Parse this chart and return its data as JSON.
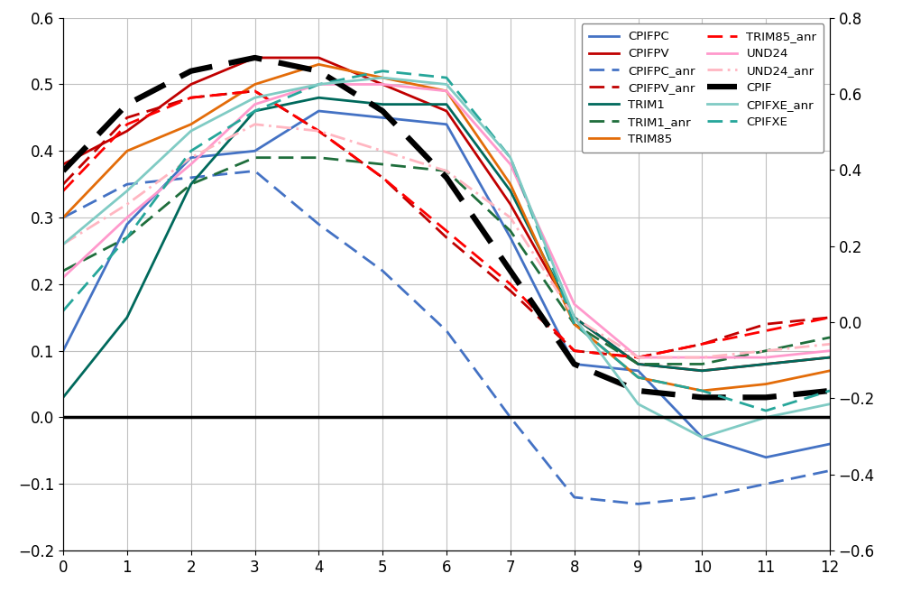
{
  "x": [
    0,
    1,
    2,
    3,
    4,
    5,
    6,
    7,
    8,
    9,
    10,
    11,
    12
  ],
  "series": {
    "CPIFPC": {
      "color": "#4472C4",
      "linestyle": "solid",
      "linewidth": 2.0,
      "values": [
        0.1,
        0.29,
        0.39,
        0.4,
        0.46,
        0.45,
        0.44,
        0.27,
        0.08,
        0.07,
        -0.03,
        -0.06,
        -0.04
      ]
    },
    "CPIFPC_anr": {
      "color": "#4472C4",
      "linestyle": "dashed",
      "linewidth": 2.0,
      "values": [
        0.3,
        0.35,
        0.36,
        0.37,
        0.29,
        0.22,
        0.13,
        0.0,
        -0.12,
        -0.13,
        -0.12,
        -0.1,
        -0.08
      ]
    },
    "CPIFPV": {
      "color": "#C00000",
      "linestyle": "solid",
      "linewidth": 2.0,
      "values": [
        0.38,
        0.43,
        0.5,
        0.54,
        0.54,
        0.5,
        0.46,
        0.32,
        0.15,
        0.08,
        0.07,
        0.08,
        0.09
      ]
    },
    "CPIFPV_anr": {
      "color": "#C00000",
      "linestyle": "dashed",
      "linewidth": 2.0,
      "values": [
        0.35,
        0.45,
        0.48,
        0.49,
        0.43,
        0.36,
        0.27,
        0.19,
        0.1,
        0.09,
        0.11,
        0.14,
        0.15
      ]
    },
    "TRIM1": {
      "color": "#00695C",
      "linestyle": "solid",
      "linewidth": 2.0,
      "values": [
        0.03,
        0.15,
        0.35,
        0.46,
        0.48,
        0.47,
        0.47,
        0.34,
        0.15,
        0.08,
        0.07,
        0.08,
        0.09
      ]
    },
    "TRIM1_anr": {
      "color": "#1F6E3C",
      "linestyle": "dashed",
      "linewidth": 2.0,
      "values": [
        0.22,
        0.27,
        0.35,
        0.39,
        0.39,
        0.38,
        0.37,
        0.28,
        0.14,
        0.08,
        0.08,
        0.1,
        0.12
      ]
    },
    "TRIM85": {
      "color": "#E36C09",
      "linestyle": "solid",
      "linewidth": 2.0,
      "values": [
        0.3,
        0.4,
        0.44,
        0.5,
        0.53,
        0.51,
        0.49,
        0.35,
        0.14,
        0.06,
        0.04,
        0.05,
        0.07
      ]
    },
    "TRIM85_anr": {
      "color": "#FF0000",
      "linestyle": "dashed",
      "linewidth": 2.0,
      "values": [
        0.34,
        0.44,
        0.48,
        0.49,
        0.43,
        0.36,
        0.28,
        0.2,
        0.1,
        0.09,
        0.11,
        0.13,
        0.15
      ]
    },
    "UND24": {
      "color": "#FF99CC",
      "linestyle": "solid",
      "linewidth": 2.0,
      "values": [
        0.21,
        0.3,
        0.38,
        0.47,
        0.5,
        0.5,
        0.49,
        0.38,
        0.17,
        0.09,
        0.09,
        0.09,
        0.1
      ]
    },
    "UND24_anr": {
      "color": "#FFB6C1",
      "linestyle": "dashed",
      "linewidth": 2.0,
      "dashes": [
        6,
        2,
        1,
        2
      ],
      "values": [
        0.26,
        0.32,
        0.39,
        0.44,
        0.43,
        0.4,
        0.37,
        0.3,
        0.15,
        0.09,
        0.09,
        0.1,
        0.11
      ]
    },
    "CPIF": {
      "color": "#000000",
      "linestyle": "dashed",
      "linewidth": 4.5,
      "values": [
        0.37,
        0.47,
        0.52,
        0.54,
        0.52,
        0.46,
        0.36,
        0.22,
        0.08,
        0.04,
        0.03,
        0.03,
        0.04
      ]
    },
    "CPIFXE": {
      "color": "#26A69A",
      "linestyle": "dashed",
      "linewidth": 2.0,
      "values": [
        0.16,
        0.27,
        0.4,
        0.46,
        0.5,
        0.52,
        0.51,
        0.39,
        0.14,
        0.06,
        0.04,
        0.01,
        0.04
      ]
    },
    "CPIFXE_anr": {
      "color": "#80CBC4",
      "linestyle": "solid",
      "linewidth": 2.0,
      "values": [
        0.26,
        0.34,
        0.43,
        0.48,
        0.5,
        0.51,
        0.5,
        0.39,
        0.15,
        0.02,
        -0.03,
        0.0,
        0.02
      ]
    }
  },
  "ylim_left": [
    -0.2,
    0.6
  ],
  "ylim_right": [
    -0.6,
    0.8
  ],
  "xlim": [
    0,
    12
  ],
  "xticks": [
    0,
    1,
    2,
    3,
    4,
    5,
    6,
    7,
    8,
    9,
    10,
    11,
    12
  ],
  "yticks_left": [
    -0.2,
    -0.1,
    0.0,
    0.1,
    0.2,
    0.3,
    0.4,
    0.5,
    0.6
  ],
  "yticks_right": [
    -0.6,
    -0.4,
    -0.2,
    0.0,
    0.2,
    0.4,
    0.6,
    0.8
  ],
  "background_color": "#FFFFFF",
  "grid_color": "#C0C0C0",
  "legend_left_col": [
    "CPIFPC",
    "CPIFPC_anr",
    "TRIM1",
    "TRIM85",
    "UND24",
    "CPIF",
    "CPIFXE"
  ],
  "legend_right_col": [
    "CPIFPV",
    "CPIFPV_anr",
    "TRIM1_anr",
    "TRIM85_anr",
    "UND24_anr",
    "CPIFXE_anr"
  ]
}
